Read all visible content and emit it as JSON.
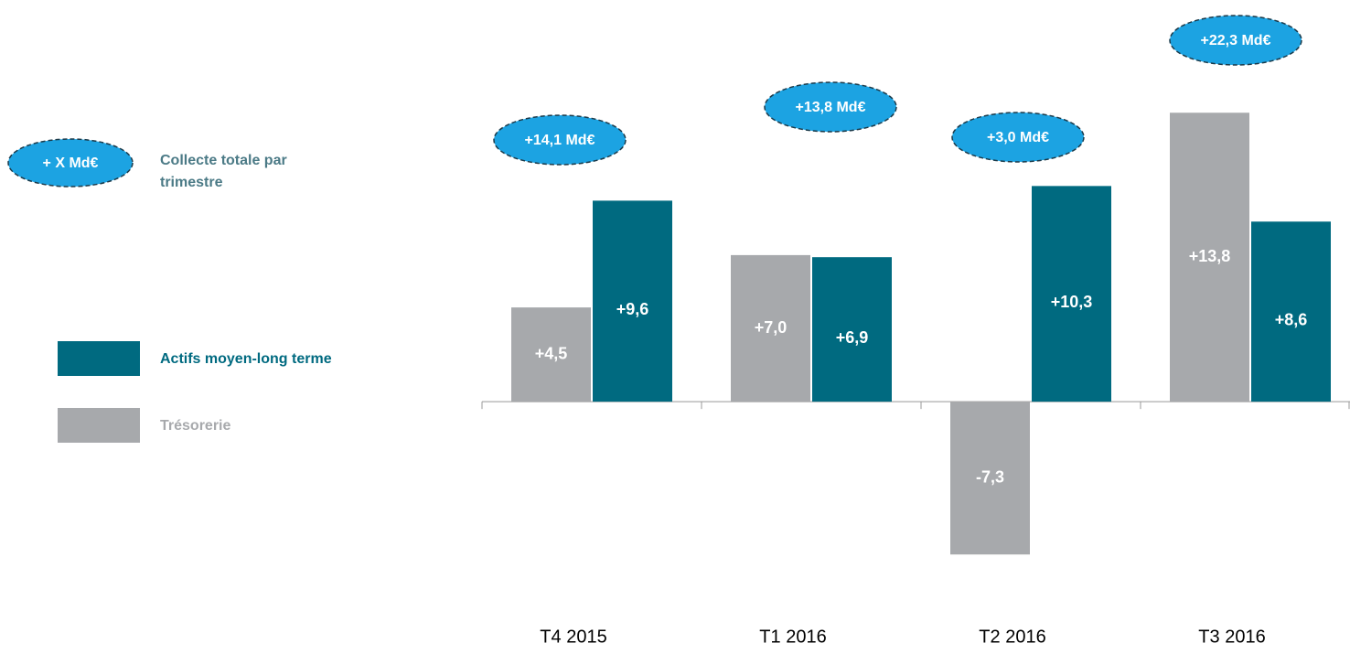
{
  "chart_data": {
    "type": "bar",
    "categories": [
      "T4 2015",
      "T1 2016",
      "T2 2016",
      "T3 2016"
    ],
    "series": [
      {
        "name": "Trésorerie",
        "color": "#a7a9ac",
        "values": [
          4.5,
          7.0,
          -7.3,
          13.8
        ],
        "value_labels": [
          "+4,5",
          "+7,0",
          "-7,3",
          "+13,8"
        ]
      },
      {
        "name": "Actifs moyen-long terme",
        "color": "#006a80",
        "values": [
          9.6,
          6.9,
          10.3,
          8.6
        ],
        "value_labels": [
          "+9,6",
          "+6,9",
          "+10,3",
          "+8,6"
        ]
      }
    ],
    "totals": [
      14.1,
      13.8,
      3.0,
      22.3
    ],
    "total_labels": [
      "+14,1 Md€",
      "+13,8 Md€",
      "+3,0 Md€",
      "+22,3 Md€"
    ],
    "totals_color": "#1ca3e2",
    "totals_legend_label": "+ X Md€",
    "totals_legend_text": "Collecte totale par trimestre",
    "ylim": [
      -10,
      17
    ]
  }
}
